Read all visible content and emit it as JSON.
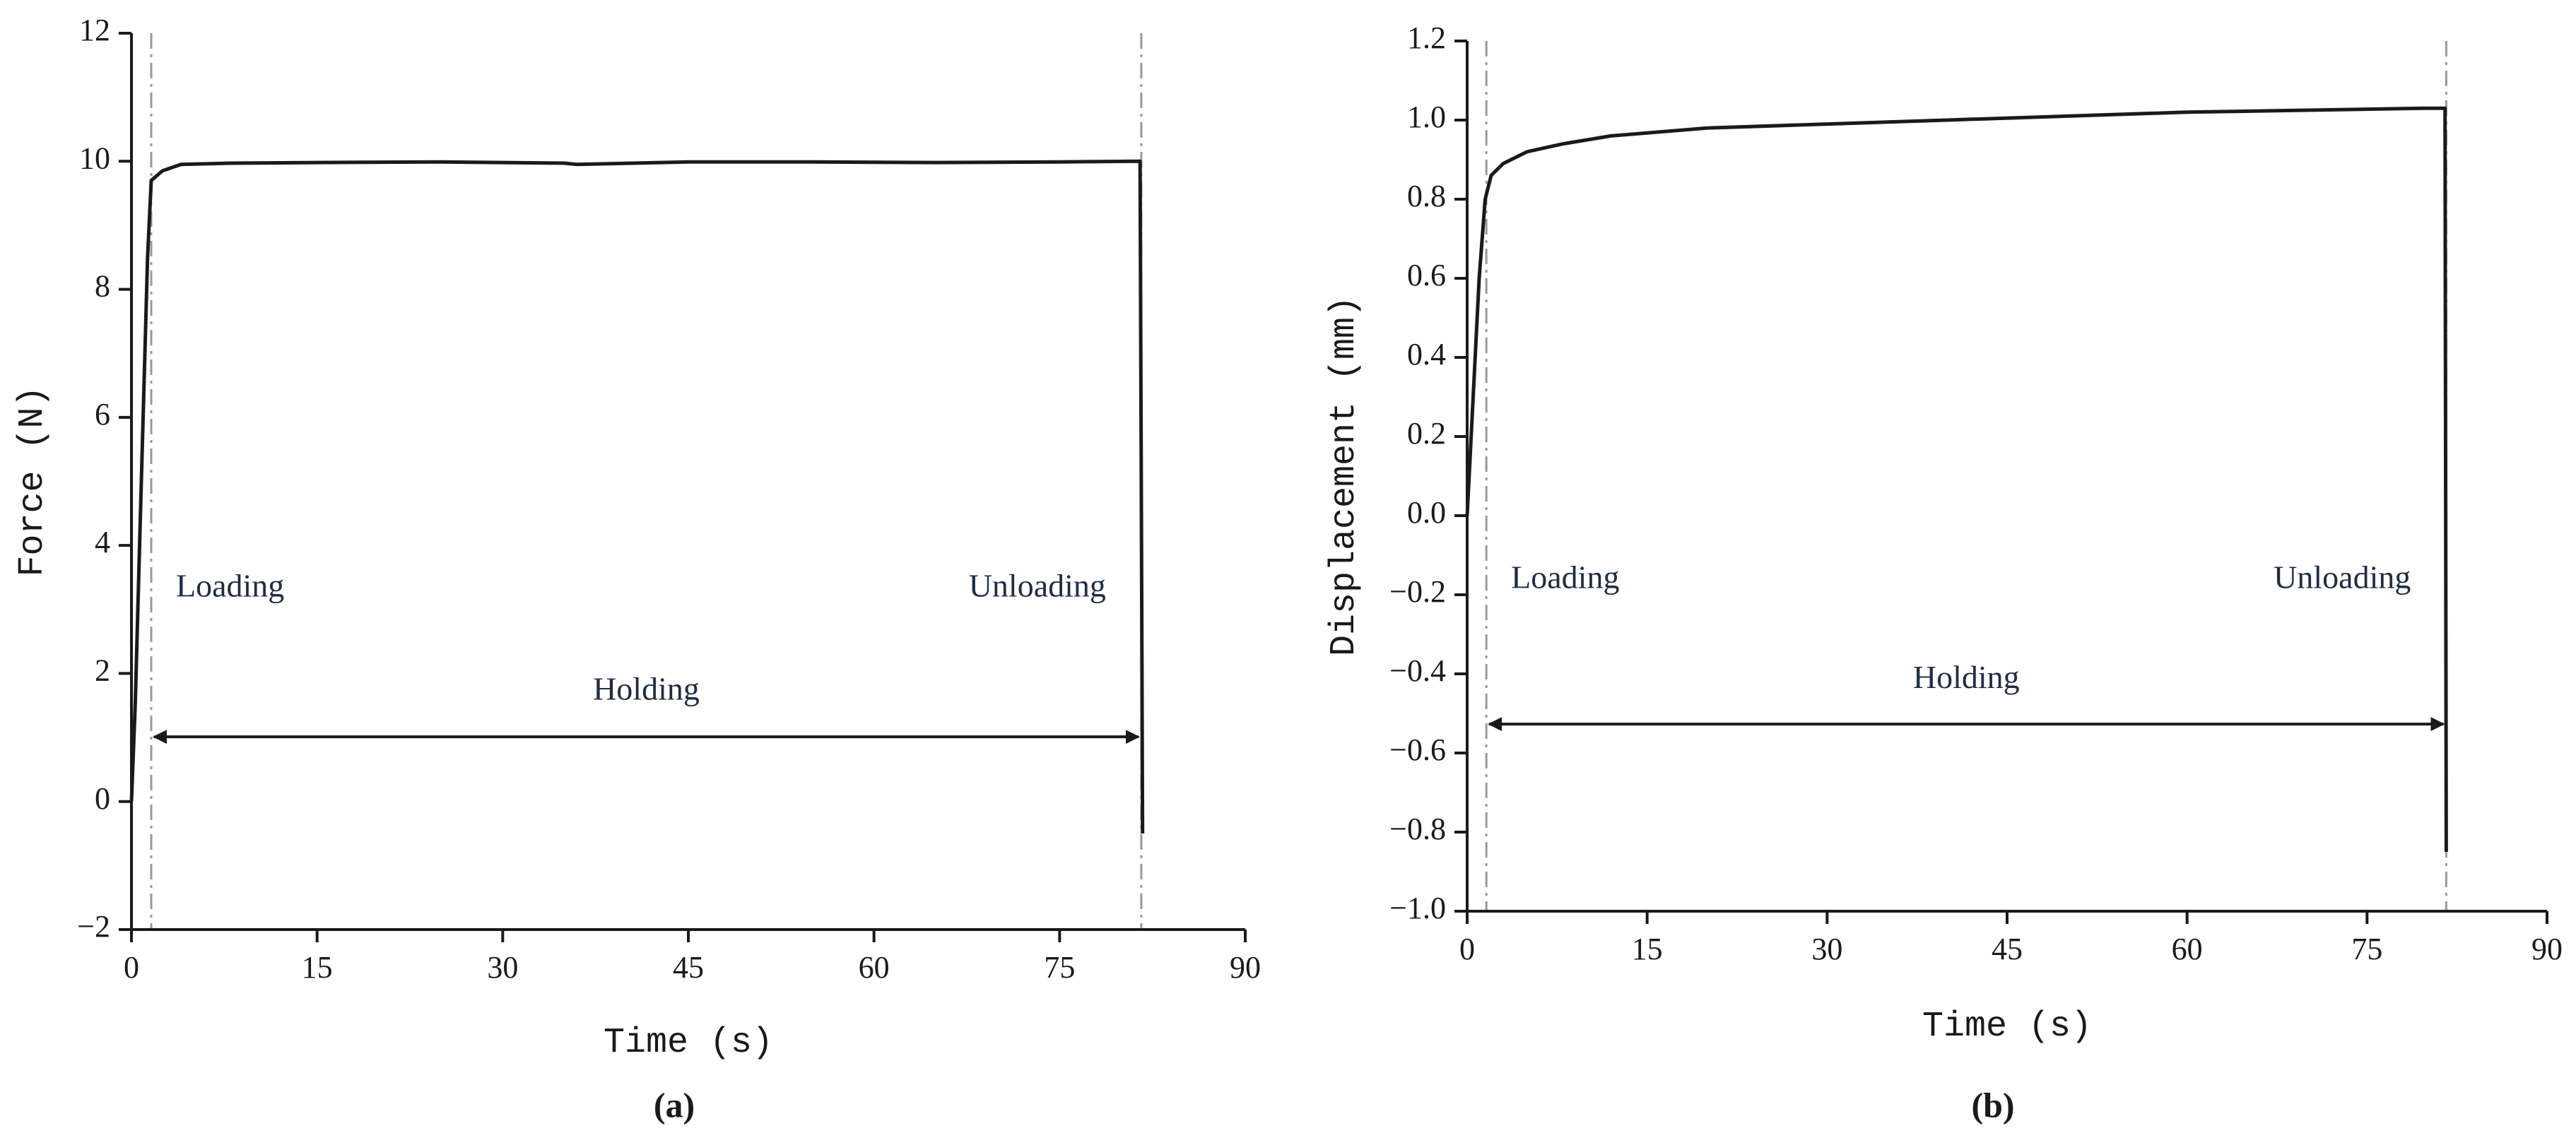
{
  "chart_data": [
    {
      "type": "line",
      "panel_label": "(a)",
      "xlabel": "Time (s)",
      "ylabel": "Force (N)",
      "loading_label": "Loading",
      "holding_label": "Holding",
      "unloading_label": "Unloading",
      "color": "#1a1a1a",
      "vline_color": "#999999",
      "vlines": [
        1.6,
        81.6
      ],
      "x": [
        0,
        0.3,
        0.8,
        1.3,
        1.6,
        2.5,
        4,
        8,
        15,
        25,
        35,
        36,
        45,
        55,
        65,
        75,
        81.5,
        81.6,
        81.7
      ],
      "values": [
        0,
        1.5,
        5,
        8.5,
        9.7,
        9.85,
        9.95,
        9.97,
        9.98,
        9.99,
        9.97,
        9.95,
        9.99,
        9.99,
        9.98,
        9.99,
        10.0,
        5,
        -0.5
      ],
      "xlim": [
        0,
        90
      ],
      "xticks": [
        0,
        15,
        30,
        45,
        60,
        75,
        90
      ],
      "ylim": [
        -2,
        12
      ],
      "yticks": [
        {
          "value": -2,
          "label": "−2"
        },
        0,
        2,
        4,
        6,
        8,
        10,
        12
      ]
    },
    {
      "type": "line",
      "panel_label": "(b)",
      "xlabel": "Time (s)",
      "ylabel": "Displacement (mm)",
      "loading_label": "Loading",
      "holding_label": "Holding",
      "unloading_label": "Unloading",
      "color": "#1a1a1a",
      "vline_color": "#999999",
      "vlines": [
        1.6,
        81.6
      ],
      "x": [
        0,
        0.5,
        1,
        1.5,
        2,
        3,
        5,
        8,
        12,
        20,
        30,
        40,
        50,
        60,
        70,
        80,
        81.5,
        81.6
      ],
      "values": [
        0,
        0.3,
        0.6,
        0.8,
        0.86,
        0.89,
        0.92,
        0.94,
        0.96,
        0.98,
        0.99,
        1.0,
        1.01,
        1.02,
        1.025,
        1.03,
        1.03,
        -0.85
      ],
      "xlim": [
        0,
        90
      ],
      "xticks": [
        0,
        15,
        30,
        45,
        60,
        75,
        90
      ],
      "ylim": [
        -1,
        1.2
      ],
      "yticks": [
        {
          "value": -1,
          "label": "−1.0"
        },
        {
          "value": -0.8,
          "label": "−0.8"
        },
        {
          "value": -0.6,
          "label": "−0.6"
        },
        {
          "value": -0.4,
          "label": "−0.4"
        },
        {
          "value": -0.2,
          "label": "−0.2"
        },
        {
          "value": 0,
          "label": "0.0"
        },
        0.2,
        0.4,
        0.6,
        0.8,
        {
          "value": 1,
          "label": "1.0"
        },
        1.2
      ]
    }
  ]
}
